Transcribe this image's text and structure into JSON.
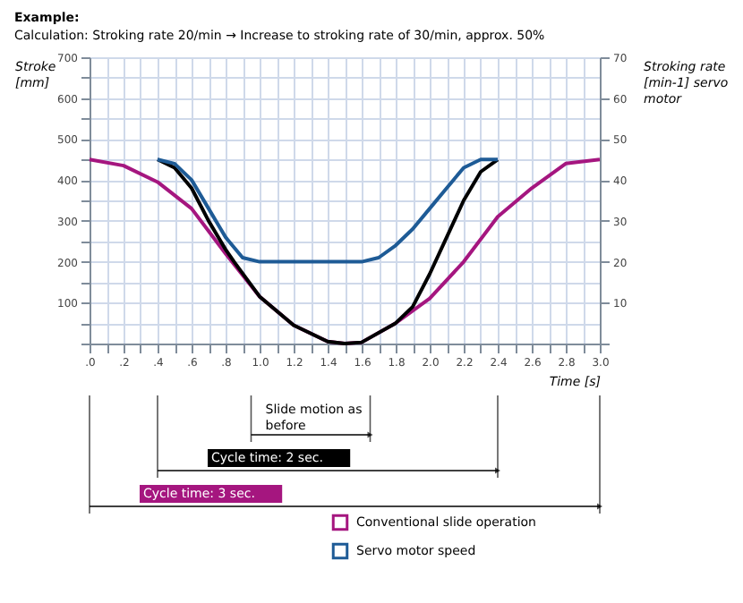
{
  "chart_data": {
    "type": "line",
    "title": "Example:",
    "subtitle": "Calculation: Stroking rate 20/min → Increase to stroking rate of 30/min, approx. 50%",
    "xlabel": "Time [s]",
    "ylabel": "Stroke [mm]",
    "y2label": "Stroking rate [min-1] servo motor",
    "xlim": [
      0,
      3
    ],
    "ylim": [
      0,
      700
    ],
    "y2lim": [
      0,
      70
    ],
    "xticks": [
      {
        "value": 0,
        "label": ".0"
      },
      {
        "value": 0.1,
        "label": null
      },
      {
        "value": 0.2,
        "label": ".2"
      },
      {
        "value": 0.3,
        "label": null
      },
      {
        "value": 0.4,
        "label": ".4"
      },
      {
        "value": 0.5,
        "label": null
      },
      {
        "value": 0.6,
        "label": ".6"
      },
      {
        "value": 0.7,
        "label": null
      },
      {
        "value": 0.8,
        "label": ".8"
      },
      {
        "value": 0.9,
        "label": null
      },
      {
        "value": 1.0,
        "label": "1.0"
      },
      {
        "value": 1.1,
        "label": null
      },
      {
        "value": 1.2,
        "label": "1.2"
      },
      {
        "value": 1.3,
        "label": null
      },
      {
        "value": 1.4,
        "label": "1.4"
      },
      {
        "value": 1.5,
        "label": null
      },
      {
        "value": 1.6,
        "label": "1.6"
      },
      {
        "value": 1.7,
        "label": null
      },
      {
        "value": 1.8,
        "label": "1.8"
      },
      {
        "value": 1.9,
        "label": null
      },
      {
        "value": 2.0,
        "label": "2.0"
      },
      {
        "value": 2.1,
        "label": null
      },
      {
        "value": 2.2,
        "label": "2.2"
      },
      {
        "value": 2.3,
        "label": null
      },
      {
        "value": 2.4,
        "label": "2.4"
      },
      {
        "value": 2.5,
        "label": null
      },
      {
        "value": 2.6,
        "label": "2.6"
      },
      {
        "value": 2.7,
        "label": null
      },
      {
        "value": 2.8,
        "label": "2.8"
      },
      {
        "value": 2.9,
        "label": null
      },
      {
        "value": 3.0,
        "label": "3.0"
      }
    ],
    "yticks": [
      {
        "value": 0,
        "label": null
      },
      {
        "value": 50,
        "label": null
      },
      100,
      {
        "value": 150,
        "label": null
      },
      200,
      {
        "value": 250,
        "label": null
      },
      300,
      {
        "value": 350,
        "label": null
      },
      400,
      {
        "value": 450,
        "label": null
      },
      500,
      {
        "value": 550,
        "label": null
      },
      600,
      {
        "value": 650,
        "label": null
      },
      700
    ],
    "y2ticks": [
      {
        "value": 0,
        "label": null
      },
      10,
      20,
      30,
      40,
      50,
      60,
      70
    ],
    "grid": true,
    "legend": "bottom right",
    "marker": "none",
    "line_style": "solid",
    "series": [
      {
        "name": "Conventional slide operation",
        "color": "#a5167f",
        "x": [
          0,
          0.2,
          0.4,
          0.6,
          0.8,
          1.0,
          1.2,
          1.4,
          1.5,
          1.6,
          1.8,
          2.0,
          2.2,
          2.4,
          2.6,
          2.8,
          3.0
        ],
        "values": [
          450,
          435,
          395,
          330,
          220,
          115,
          45,
          5,
          0,
          3,
          50,
          110,
          200,
          310,
          380,
          440,
          450
        ]
      },
      {
        "color": "#000000",
        "x": [
          0.4,
          0.5,
          0.6,
          0.7,
          0.8,
          0.85,
          1.0,
          1.2,
          1.4,
          1.5,
          1.6,
          1.8,
          1.9,
          2.0,
          2.1,
          2.2,
          2.3,
          2.4
        ],
        "values": [
          450,
          430,
          380,
          300,
          230,
          200,
          115,
          45,
          5,
          0,
          3,
          50,
          90,
          170,
          260,
          350,
          420,
          450
        ]
      },
      {
        "name": "Servo motor speed",
        "color": "#1e5b96",
        "axis": "y2",
        "x": [
          0.4,
          0.5,
          0.6,
          0.7,
          0.8,
          0.9,
          1.0,
          1.6,
          1.7,
          1.8,
          1.9,
          2.0,
          2.1,
          2.2,
          2.3,
          2.4
        ],
        "values": [
          45,
          44,
          40,
          33,
          26,
          21,
          20,
          20,
          21,
          24,
          28,
          33,
          38,
          43,
          45,
          45
        ]
      }
    ],
    "annotations": [
      "Slide motion as before",
      "Cycle time: 2 sec.",
      "Cycle time: 3 sec."
    ]
  }
}
